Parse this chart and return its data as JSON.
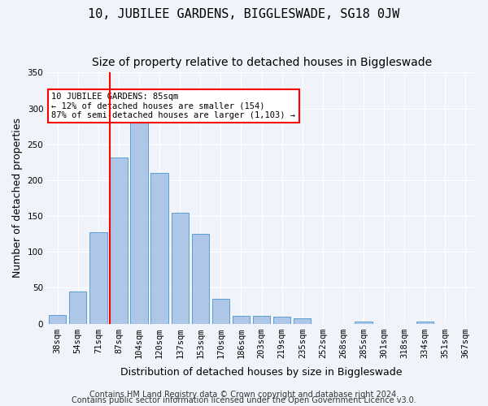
{
  "title": "10, JUBILEE GARDENS, BIGGLESWADE, SG18 0JW",
  "subtitle": "Size of property relative to detached houses in Biggleswade",
  "xlabel": "Distribution of detached houses by size in Biggleswade",
  "ylabel": "Number of detached properties",
  "bar_labels": [
    "38sqm",
    "54sqm",
    "71sqm",
    "87sqm",
    "104sqm",
    "120sqm",
    "137sqm",
    "153sqm",
    "170sqm",
    "186sqm",
    "203sqm",
    "219sqm",
    "235sqm",
    "252sqm",
    "268sqm",
    "285sqm",
    "301sqm",
    "318sqm",
    "334sqm",
    "351sqm",
    "367sqm"
  ],
  "bar_values": [
    12,
    45,
    127,
    232,
    282,
    210,
    155,
    125,
    35,
    11,
    11,
    10,
    7,
    0,
    0,
    3,
    0,
    0,
    3,
    0,
    0
  ],
  "bar_color": "#aec6e8",
  "bar_edgecolor": "#5a9fd4",
  "vline_x": 3,
  "vline_color": "red",
  "annotation_text": "10 JUBILEE GARDENS: 85sqm\n← 12% of detached houses are smaller (154)\n87% of semi-detached houses are larger (1,103) →",
  "annotation_box_edgecolor": "red",
  "annotation_box_facecolor": "white",
  "ylim": [
    0,
    350
  ],
  "yticks": [
    0,
    50,
    100,
    150,
    200,
    250,
    300,
    350
  ],
  "footer1": "Contains HM Land Registry data © Crown copyright and database right 2024.",
  "footer2": "Contains public sector information licensed under the Open Government Licence v3.0.",
  "background_color": "#f0f4fa",
  "grid_color": "white",
  "title_fontsize": 11,
  "subtitle_fontsize": 10,
  "axis_label_fontsize": 9,
  "tick_fontsize": 7.5,
  "footer_fontsize": 7
}
